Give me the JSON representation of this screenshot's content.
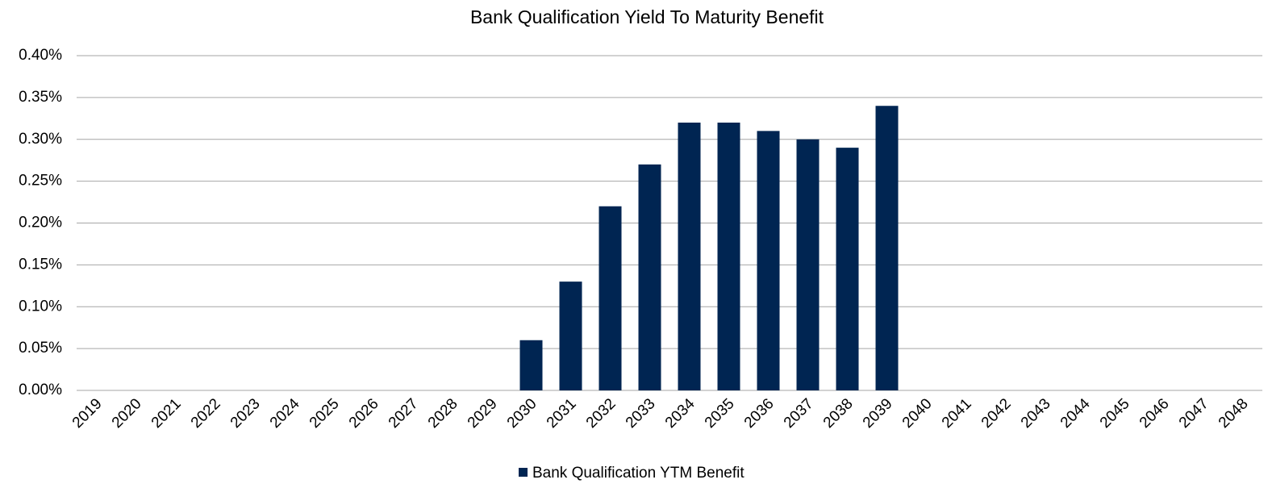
{
  "chart_data": {
    "type": "bar",
    "title": "Bank Qualification Yield To Maturity Benefit",
    "categories": [
      "2019",
      "2020",
      "2021",
      "2022",
      "2023",
      "2024",
      "2025",
      "2026",
      "2027",
      "2028",
      "2029",
      "2030",
      "2031",
      "2032",
      "2033",
      "2034",
      "2035",
      "2036",
      "2037",
      "2038",
      "2039",
      "2040",
      "2041",
      "2042",
      "2043",
      "2044",
      "2045",
      "2046",
      "2047",
      "2048"
    ],
    "series": [
      {
        "name": "Bank Qualification YTM Benefit",
        "color": "#002552",
        "values": [
          0,
          0,
          0,
          0,
          0,
          0,
          0,
          0,
          0,
          0,
          0,
          0.06,
          0.13,
          0.22,
          0.27,
          0.32,
          0.32,
          0.31,
          0.3,
          0.29,
          0.34,
          0,
          0,
          0,
          0,
          0,
          0,
          0,
          0,
          0
        ]
      }
    ],
    "ylim": [
      0,
      0.4
    ],
    "yticks": [
      {
        "value": 0,
        "label": "0.00%"
      },
      {
        "value": 0.05,
        "label": "0.05%"
      },
      {
        "value": 0.1,
        "label": "0.10%"
      },
      {
        "value": 0.15,
        "label": "0.15%"
      },
      {
        "value": 0.2,
        "label": "0.20%"
      },
      {
        "value": 0.25,
        "label": "0.25%"
      },
      {
        "value": 0.3,
        "label": "0.30%"
      },
      {
        "value": 0.35,
        "label": "0.35%"
      },
      {
        "value": 0.4,
        "label": "0.40%"
      }
    ],
    "grid": true,
    "legend": "bottom"
  }
}
